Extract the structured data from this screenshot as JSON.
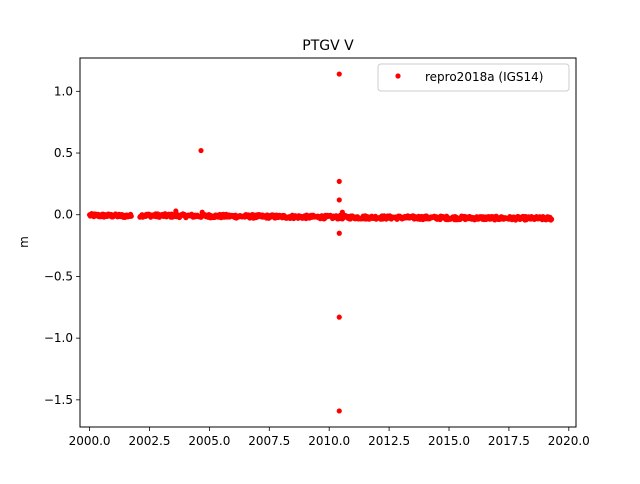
{
  "chart_data": {
    "type": "scatter",
    "title": "PTGV V",
    "xlabel": "",
    "ylabel": "m",
    "xlim": [
      1999.6,
      2020.3
    ],
    "ylim": [
      -1.72,
      1.27
    ],
    "xticks": [
      2000.0,
      2002.5,
      2005.0,
      2007.5,
      2010.0,
      2012.5,
      2015.0,
      2017.5,
      2020.0
    ],
    "xtick_labels": [
      "2000.0",
      "2002.5",
      "2005.0",
      "2007.5",
      "2010.0",
      "2012.5",
      "2015.0",
      "2017.5",
      "2020.0"
    ],
    "yticks": [
      -1.5,
      -1.0,
      -0.5,
      0.0,
      0.5,
      1.0
    ],
    "ytick_labels": [
      "−1.5",
      "−1.0",
      "−0.5",
      "0.0",
      "0.5",
      "1.0"
    ],
    "grid": false,
    "legend_position": "top-right",
    "series": [
      {
        "name": "repro2018a (IGS14)",
        "color": "#ff0000",
        "marker": "circle",
        "segments": [
          {
            "x_start": 2000.0,
            "x_end": 2001.75,
            "y_start": -0.005,
            "y_end": -0.01
          },
          {
            "x_start": 2002.1,
            "x_end": 2010.4,
            "y_start": -0.005,
            "y_end": -0.02
          },
          {
            "x_start": 2010.4,
            "x_end": 2019.3,
            "y_start": -0.02,
            "y_end": -0.03
          }
        ],
        "outliers": [
          {
            "x": 2004.65,
            "y": 0.52
          },
          {
            "x": 2003.6,
            "y": 0.03
          },
          {
            "x": 2004.7,
            "y": 0.02
          },
          {
            "x": 2010.42,
            "y": 1.14
          },
          {
            "x": 2010.42,
            "y": 0.27
          },
          {
            "x": 2010.42,
            "y": 0.12
          },
          {
            "x": 2010.42,
            "y": -0.15
          },
          {
            "x": 2010.42,
            "y": -0.83
          },
          {
            "x": 2010.42,
            "y": -1.59
          },
          {
            "x": 2010.55,
            "y": 0.02
          }
        ]
      }
    ]
  }
}
